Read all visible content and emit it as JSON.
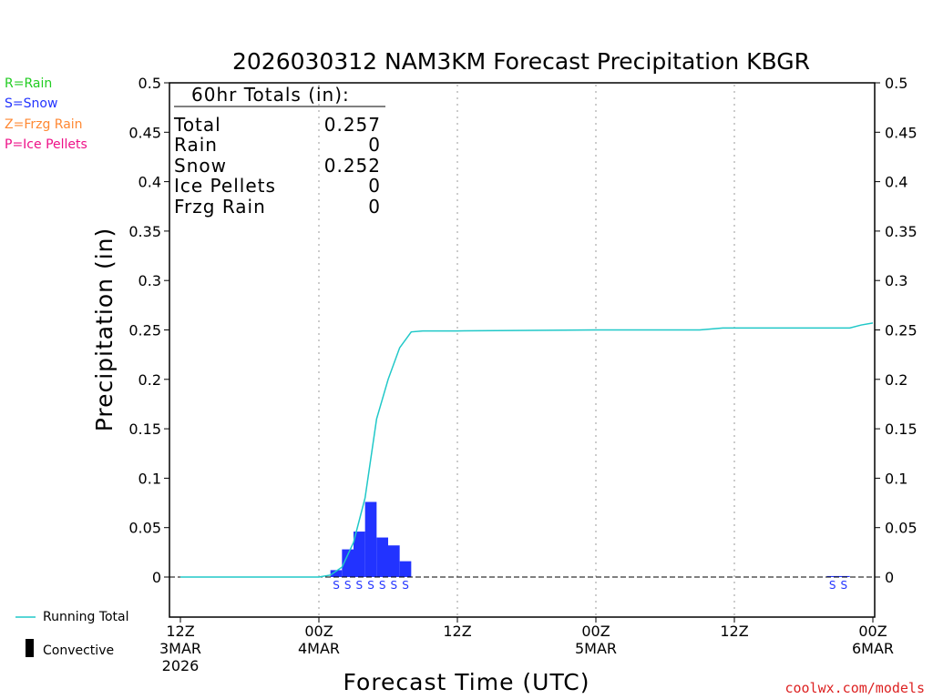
{
  "chart_data": {
    "type": "bar",
    "title": "2026030312 NAM3KM Forecast Precipitation KBGR",
    "xlabel": "Forecast Time (UTC)",
    "ylabel": "Precipitation (in)",
    "ylim": [
      -0.04,
      0.5
    ],
    "yticks": [
      "0.5",
      "0.45",
      "0.4",
      "0.35",
      "0.3",
      "0.25",
      "0.2",
      "0.15",
      "0.1",
      "0.05",
      "0"
    ],
    "xlim_hours": [
      0,
      60
    ],
    "xticks": [
      {
        "hour": 0,
        "line1": "12Z",
        "line2": "3MAR",
        "line3": "2026"
      },
      {
        "hour": 12,
        "line1": "00Z",
        "line2": "4MAR",
        "line3": ""
      },
      {
        "hour": 24,
        "line1": "12Z",
        "line2": "",
        "line3": ""
      },
      {
        "hour": 36,
        "line1": "00Z",
        "line2": "5MAR",
        "line3": ""
      },
      {
        "hour": 48,
        "line1": "12Z",
        "line2": "",
        "line3": ""
      },
      {
        "hour": 60,
        "line1": "00Z",
        "line2": "6MAR",
        "line3": ""
      }
    ],
    "grid": "vertical dotted at 00Z/12Z",
    "hourly_precip": {
      "name": "Snow",
      "color": "#2233ff",
      "hours": [
        14,
        15,
        16,
        17,
        18,
        19,
        20,
        57,
        58
      ],
      "values": [
        0.007,
        0.028,
        0.046,
        0.076,
        0.04,
        0.032,
        0.016,
        0.001,
        0.001
      ]
    },
    "precip_type_labels": {
      "hours": [
        14,
        15,
        16,
        17,
        18,
        19,
        20,
        57,
        58
      ],
      "labels": [
        "S",
        "S",
        "S",
        "S",
        "S",
        "S",
        "S",
        "S",
        "S"
      ]
    },
    "running_total": {
      "name": "Running Total",
      "color": "#20c8c8",
      "hours": [
        0,
        12,
        13,
        14,
        15,
        16,
        17,
        18,
        19,
        20,
        21,
        24,
        36,
        45,
        47,
        58,
        59,
        60
      ],
      "values": [
        0,
        0,
        0.002,
        0.01,
        0.035,
        0.08,
        0.16,
        0.2,
        0.232,
        0.248,
        0.249,
        0.249,
        0.25,
        0.25,
        0.252,
        0.252,
        0.255,
        0.257
      ]
    },
    "totals_box": {
      "header": "60hr Totals (in):",
      "rows": [
        {
          "label": "Total",
          "value": "0.257"
        },
        {
          "label": "Rain",
          "value": "0"
        },
        {
          "label": "Snow",
          "value": "0.252"
        },
        {
          "label": "Ice Pellets",
          "value": "0"
        },
        {
          "label": "Frzg Rain",
          "value": "0"
        }
      ]
    }
  },
  "ptype_legend": [
    {
      "text": "R=Rain",
      "color": "#22cc22"
    },
    {
      "text": "S=Snow",
      "color": "#2233ff"
    },
    {
      "text": "Z=Frzg Rain",
      "color": "#ff8833"
    },
    {
      "text": "P=Ice Pellets",
      "color": "#ee1188"
    }
  ],
  "bottom_legend": {
    "running_total": "Running Total",
    "convective": "Convective"
  },
  "watermark": {
    "text": "coolwx.com/models",
    "color": "#dd2222"
  }
}
